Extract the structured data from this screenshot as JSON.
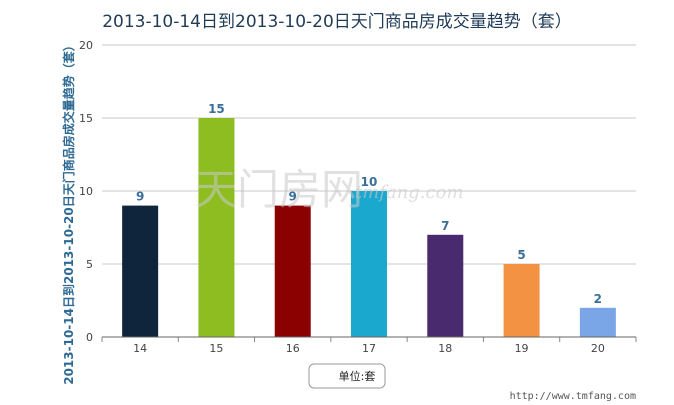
{
  "chart_data": {
    "type": "bar",
    "title": "2013-10-14日到2013-10-20日天门商品房成交量趋势（套）",
    "ylabel": "2013-10-14日到2013-10-20日天门商品房成交量趋势（套）",
    "xlabel": "",
    "categories": [
      "14",
      "15",
      "16",
      "17",
      "18",
      "19",
      "20"
    ],
    "values": [
      9,
      15,
      9,
      10,
      7,
      5,
      2
    ],
    "data_labels": [
      "9",
      "15",
      "9",
      "10",
      "7",
      "5",
      "2"
    ],
    "bar_colors": [
      "#0f253c",
      "#8dbd21",
      "#8b0000",
      "#1aa8cf",
      "#4a2a6e",
      "#f39242",
      "#7aa5e6"
    ],
    "ylim": [
      0,
      20
    ],
    "yticks": [
      0,
      5,
      10,
      15,
      20
    ],
    "ytick_labels": [
      "0",
      "5",
      "10",
      "15",
      "20"
    ],
    "grid": true,
    "legend": {
      "label": "单位:套",
      "placement": "bottom-center"
    }
  },
  "watermark": {
    "main": "天门房网",
    "sub": "tmfang.com"
  },
  "source": "http://www.tmfang.com"
}
